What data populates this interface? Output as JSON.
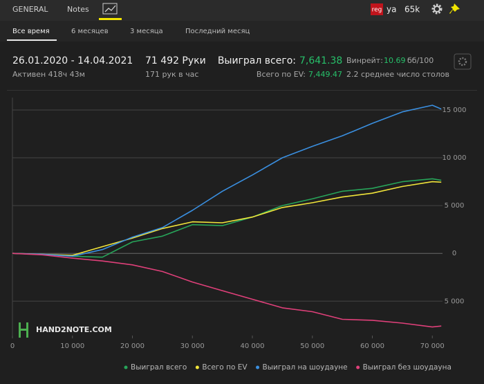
{
  "tabs": [
    "GENERAL",
    "Notes"
  ],
  "account": {
    "badge": "reg",
    "name": "ya",
    "count": "65k"
  },
  "periods": [
    "Все время",
    "6 месяцев",
    "3 месяца",
    "Последний месяц"
  ],
  "stats": {
    "dates": "26.01.2020 - 14.04.2021",
    "active": "Активен 418ч 43м",
    "hands": "71 492 Руки",
    "rate": "171 рук в час",
    "won_label": "Выиграл всего:",
    "won_value": "7,641.38",
    "ev_label": "Всего по EV:",
    "ev_value": "7,449.47",
    "winrate_label": "Винрейт:",
    "winrate_value": "10.69",
    "winrate_unit": "бб/100",
    "tables": "2.2 среднее число столов"
  },
  "watermark": "HAND2NOTE.COM",
  "chart_data": {
    "type": "line",
    "x": [
      0,
      5000,
      10000,
      15000,
      20000,
      25000,
      30000,
      35000,
      40000,
      45000,
      50000,
      55000,
      60000,
      65000,
      70000,
      71492
    ],
    "series": [
      {
        "name": "Выиграл всего",
        "color": "#27a55a",
        "values": [
          0,
          -100,
          -300,
          -400,
          1200,
          1800,
          3000,
          2900,
          3800,
          5000,
          5700,
          6500,
          6800,
          7500,
          7800,
          7641.38
        ]
      },
      {
        "name": "Всего по EV",
        "color": "#f2e53a",
        "values": [
          0,
          -100,
          -200,
          700,
          1600,
          2600,
          3300,
          3200,
          3800,
          4800,
          5300,
          5900,
          6300,
          7000,
          7500,
          7449.47
        ]
      },
      {
        "name": "Выиграл на шоудауне",
        "color": "#3a8fe0",
        "values": [
          0,
          -100,
          -300,
          400,
          1700,
          2700,
          4500,
          6500,
          8200,
          10000,
          11200,
          12300,
          13600,
          14800,
          15500,
          15100
        ]
      },
      {
        "name": "Выиграл без шоудауна",
        "color": "#e0407a",
        "values": [
          0,
          -150,
          -500,
          -800,
          -1200,
          -1900,
          -3000,
          -3900,
          -4800,
          -5700,
          -6100,
          -6900,
          -7000,
          -7300,
          -7700,
          -7600
        ]
      }
    ],
    "xlim": [
      0,
      71700
    ],
    "ylim": [
      -8600,
      16300
    ],
    "xticks": [
      0,
      {
        "value": 10000,
        "label": "10 000"
      },
      {
        "value": 20000,
        "label": "20 000"
      },
      {
        "value": 30000,
        "label": "30 000"
      },
      {
        "value": 40000,
        "label": "40 000"
      },
      {
        "value": 50000,
        "label": "50 000"
      },
      {
        "value": 60000,
        "label": "60 000"
      },
      {
        "value": 70000,
        "label": "70 000"
      }
    ],
    "yticks": [
      {
        "value": -5000,
        "label": "5 000"
      },
      0,
      {
        "value": 5000,
        "label": "5 000"
      },
      {
        "value": 10000,
        "label": "10 000"
      },
      {
        "value": 15000,
        "label": "15 000"
      }
    ],
    "grid": true,
    "legend": "bottom"
  }
}
